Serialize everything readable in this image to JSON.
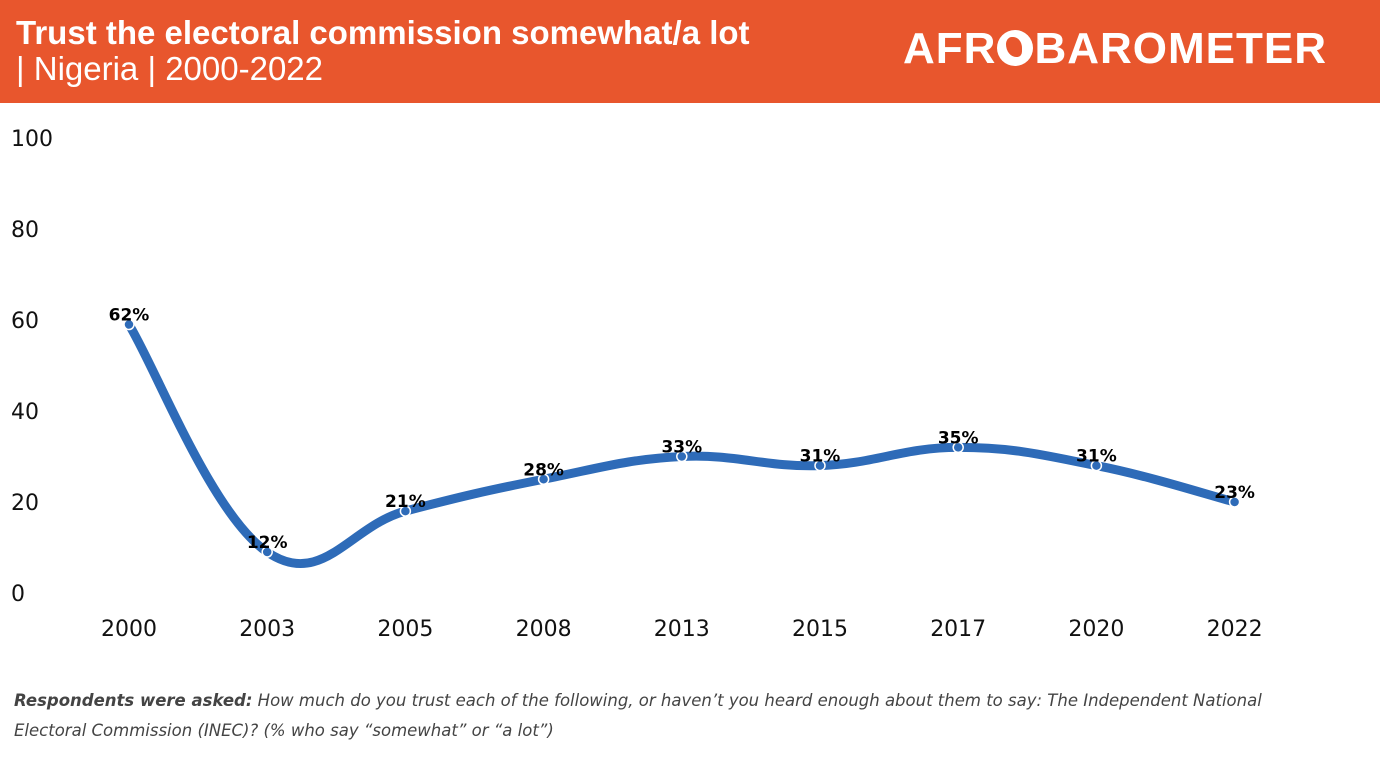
{
  "header": {
    "title": "Trust the electoral commission somewhat/a lot",
    "subtitle": "| Nigeria | 2000-2022",
    "logo_left": "AFR",
    "logo_right": "BAROMETER",
    "logo_icon": "africa-globe-icon",
    "background_color": "#e8562d"
  },
  "chart_data": {
    "type": "line",
    "title": "Trust the electoral commission somewhat/a lot | Nigeria | 2000-2022",
    "xlabel": "",
    "ylabel": "",
    "categories": [
      "2000",
      "2003",
      "2005",
      "2008",
      "2013",
      "2015",
      "2017",
      "2020",
      "2022"
    ],
    "series": [
      {
        "name": "Trust the electoral commission somewhat/a lot",
        "values": [
          62,
          12,
          21,
          28,
          33,
          31,
          35,
          31,
          23
        ],
        "labels": [
          "62%",
          "12%",
          "21%",
          "28%",
          "33%",
          "31%",
          "35%",
          "31%",
          "23%"
        ],
        "color": "#2e6bb8"
      }
    ],
    "ylim": [
      0,
      100
    ],
    "yticks": [
      0,
      20,
      40,
      60,
      80,
      100
    ],
    "ytick_labels": [
      "0",
      "20",
      "40",
      "60",
      "80",
      "100"
    ],
    "grid": false,
    "legend": "none",
    "smooth": true
  },
  "footer": {
    "note_bold": "Respondents were asked:",
    "note_text": " How much do you trust each of the following, or haven’t you heard enough about them to say: The Independent National Electoral Commission (INEC)? (% who say “somewhat” or “a lot”)"
  }
}
